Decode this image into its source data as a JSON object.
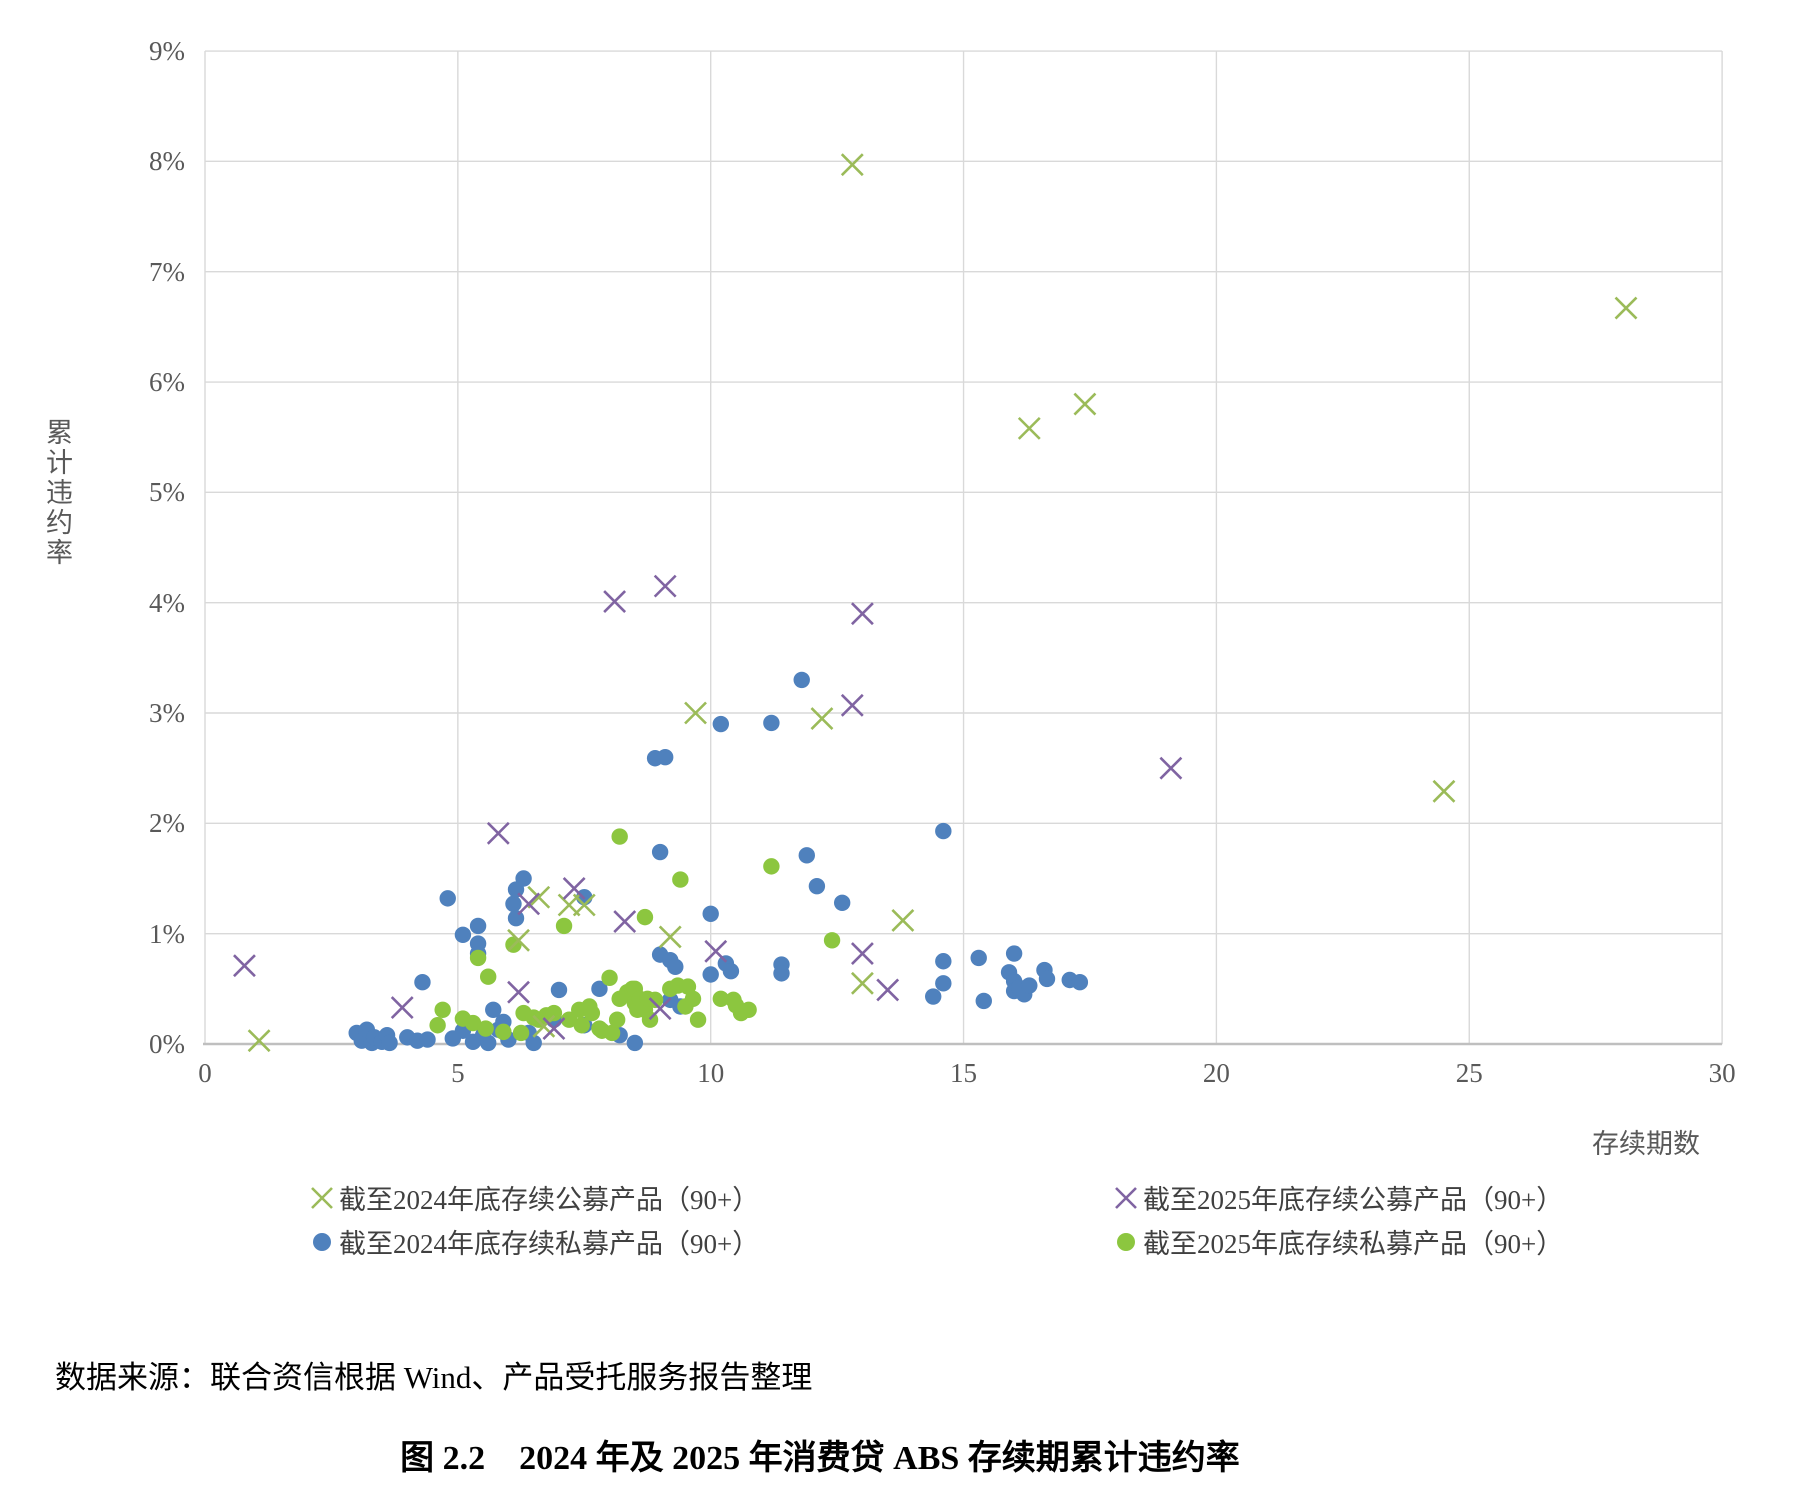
{
  "chart_data": {
    "type": "scatter",
    "title": "图 2.2　2024 年及 2025 年消费贷 ABS 存续期累计违约率",
    "source_note": "数据来源：联合资信根据 Wind、产品受托服务报告整理",
    "xlabel": "存续期数",
    "ylabel": "累计违约率",
    "xlim": [
      0,
      30
    ],
    "ylim_percent": [
      0,
      9
    ],
    "x_ticks": [
      "0",
      "5",
      "10",
      "15",
      "20",
      "25",
      "30"
    ],
    "y_ticks": [
      "0%",
      "1%",
      "2%",
      "3%",
      "4%",
      "5%",
      "6%",
      "7%",
      "8%",
      "9%"
    ],
    "grid": true,
    "legend_position": "bottom-two-columns",
    "grid_color": "#D9D9D9",
    "axis_color": "#BFBFBF",
    "tick_color": "#595959",
    "series": [
      {
        "name": "截至2024年底存续公募产品（90+）",
        "marker": "x",
        "color": "#9BBB59",
        "points": [
          [
            1.07,
            0.03
          ],
          [
            6.2,
            0.94
          ],
          [
            6.6,
            1.33
          ],
          [
            6.7,
            0.16
          ],
          [
            7.2,
            1.26
          ],
          [
            7.5,
            1.26
          ],
          [
            9.2,
            0.97
          ],
          [
            9.7,
            3.0
          ],
          [
            12.2,
            2.95
          ],
          [
            12.8,
            7.97
          ],
          [
            13.0,
            0.55
          ],
          [
            13.8,
            1.12
          ],
          [
            16.3,
            5.58
          ],
          [
            17.4,
            5.8
          ],
          [
            24.5,
            2.29
          ],
          [
            28.1,
            6.67
          ]
        ]
      },
      {
        "name": "截至2024年底存续私募产品（90+）",
        "marker": "circle",
        "color": "#4F81BD",
        "points": [
          [
            3.0,
            0.1
          ],
          [
            3.1,
            0.03
          ],
          [
            3.2,
            0.13
          ],
          [
            3.3,
            0.01
          ],
          [
            3.35,
            0.06
          ],
          [
            3.5,
            0.02
          ],
          [
            3.6,
            0.08
          ],
          [
            3.65,
            0.01
          ],
          [
            4.0,
            0.06
          ],
          [
            4.2,
            0.03
          ],
          [
            4.3,
            0.56
          ],
          [
            4.4,
            0.04
          ],
          [
            4.8,
            1.32
          ],
          [
            4.9,
            0.05
          ],
          [
            5.1,
            0.99
          ],
          [
            5.1,
            0.12
          ],
          [
            5.3,
            0.02
          ],
          [
            5.4,
            1.07
          ],
          [
            5.4,
            0.91
          ],
          [
            5.4,
            0.82
          ],
          [
            5.5,
            0.08
          ],
          [
            5.6,
            0.01
          ],
          [
            5.7,
            0.31
          ],
          [
            5.8,
            0.13
          ],
          [
            5.9,
            0.2
          ],
          [
            6.0,
            0.04
          ],
          [
            6.1,
            1.27
          ],
          [
            6.15,
            1.4
          ],
          [
            6.15,
            1.14
          ],
          [
            6.3,
            1.5
          ],
          [
            6.4,
            0.1
          ],
          [
            6.5,
            0.01
          ],
          [
            6.9,
            0.22
          ],
          [
            7.0,
            0.49
          ],
          [
            7.5,
            1.33
          ],
          [
            7.5,
            0.17
          ],
          [
            7.8,
            0.5
          ],
          [
            8.2,
            0.08
          ],
          [
            8.5,
            0.01
          ],
          [
            8.9,
            2.59
          ],
          [
            9.0,
            1.74
          ],
          [
            9.0,
            0.81
          ],
          [
            9.1,
            2.6
          ],
          [
            9.2,
            0.76
          ],
          [
            9.2,
            0.4
          ],
          [
            9.3,
            0.7
          ],
          [
            9.4,
            0.34
          ],
          [
            10.0,
            1.18
          ],
          [
            10.0,
            0.63
          ],
          [
            10.2,
            2.9
          ],
          [
            10.3,
            0.73
          ],
          [
            10.4,
            0.66
          ],
          [
            11.2,
            2.91
          ],
          [
            11.4,
            0.72
          ],
          [
            11.4,
            0.64
          ],
          [
            11.8,
            3.3
          ],
          [
            11.9,
            1.71
          ],
          [
            12.1,
            1.43
          ],
          [
            12.6,
            1.28
          ],
          [
            14.4,
            0.43
          ],
          [
            14.6,
            1.93
          ],
          [
            14.6,
            0.75
          ],
          [
            14.6,
            0.55
          ],
          [
            15.3,
            0.78
          ],
          [
            15.4,
            0.39
          ],
          [
            15.9,
            0.65
          ],
          [
            16.0,
            0.82
          ],
          [
            16.0,
            0.57
          ],
          [
            16.0,
            0.48
          ],
          [
            16.1,
            0.51
          ],
          [
            16.2,
            0.45
          ],
          [
            16.3,
            0.53
          ],
          [
            16.6,
            0.67
          ],
          [
            16.65,
            0.59
          ],
          [
            17.1,
            0.58
          ],
          [
            17.3,
            0.56
          ]
        ]
      },
      {
        "name": "截至2025年底存续公募产品（90+）",
        "marker": "x",
        "color": "#8064A2",
        "points": [
          [
            0.78,
            0.71
          ],
          [
            3.9,
            0.33
          ],
          [
            5.8,
            1.91
          ],
          [
            6.2,
            0.47
          ],
          [
            6.4,
            1.27
          ],
          [
            6.9,
            0.14
          ],
          [
            7.3,
            1.41
          ],
          [
            8.1,
            4.01
          ],
          [
            8.3,
            1.11
          ],
          [
            9.0,
            0.32
          ],
          [
            9.1,
            4.15
          ],
          [
            10.1,
            0.84
          ],
          [
            12.8,
            3.07
          ],
          [
            13.0,
            3.9
          ],
          [
            13.0,
            0.82
          ],
          [
            13.5,
            0.49
          ],
          [
            19.1,
            2.5
          ]
        ]
      },
      {
        "name": "截至2025年底存续私募产品（90+）",
        "marker": "circle",
        "color": "#8CC63F",
        "points": [
          [
            4.6,
            0.17
          ],
          [
            4.7,
            0.31
          ],
          [
            5.1,
            0.23
          ],
          [
            5.3,
            0.19
          ],
          [
            5.4,
            0.78
          ],
          [
            5.55,
            0.14
          ],
          [
            5.6,
            0.61
          ],
          [
            5.9,
            0.11
          ],
          [
            6.1,
            0.9
          ],
          [
            6.25,
            0.1
          ],
          [
            6.3,
            0.28
          ],
          [
            6.5,
            0.24
          ],
          [
            6.6,
            0.22
          ],
          [
            6.75,
            0.26
          ],
          [
            6.9,
            0.28
          ],
          [
            7.1,
            1.07
          ],
          [
            7.2,
            0.22
          ],
          [
            7.4,
            0.31
          ],
          [
            7.45,
            0.17
          ],
          [
            7.6,
            0.34
          ],
          [
            7.65,
            0.28
          ],
          [
            7.8,
            0.14
          ],
          [
            7.85,
            0.12
          ],
          [
            8.0,
            0.6
          ],
          [
            8.05,
            0.1
          ],
          [
            8.15,
            0.22
          ],
          [
            8.2,
            1.88
          ],
          [
            8.2,
            0.41
          ],
          [
            8.35,
            0.47
          ],
          [
            8.45,
            0.5
          ],
          [
            8.5,
            0.37
          ],
          [
            8.5,
            0.5
          ],
          [
            8.55,
            0.31
          ],
          [
            8.6,
            0.41
          ],
          [
            8.7,
            1.15
          ],
          [
            8.7,
            0.31
          ],
          [
            8.75,
            0.41
          ],
          [
            8.8,
            0.22
          ],
          [
            8.9,
            0.4
          ],
          [
            9.2,
            0.5
          ],
          [
            9.35,
            0.53
          ],
          [
            9.4,
            1.49
          ],
          [
            9.5,
            0.34
          ],
          [
            9.55,
            0.52
          ],
          [
            9.65,
            0.41
          ],
          [
            9.75,
            0.22
          ],
          [
            10.2,
            0.41
          ],
          [
            10.45,
            0.4
          ],
          [
            10.5,
            0.35
          ],
          [
            10.6,
            0.28
          ],
          [
            10.75,
            0.31
          ],
          [
            11.2,
            1.61
          ],
          [
            12.4,
            0.94
          ]
        ]
      }
    ]
  }
}
